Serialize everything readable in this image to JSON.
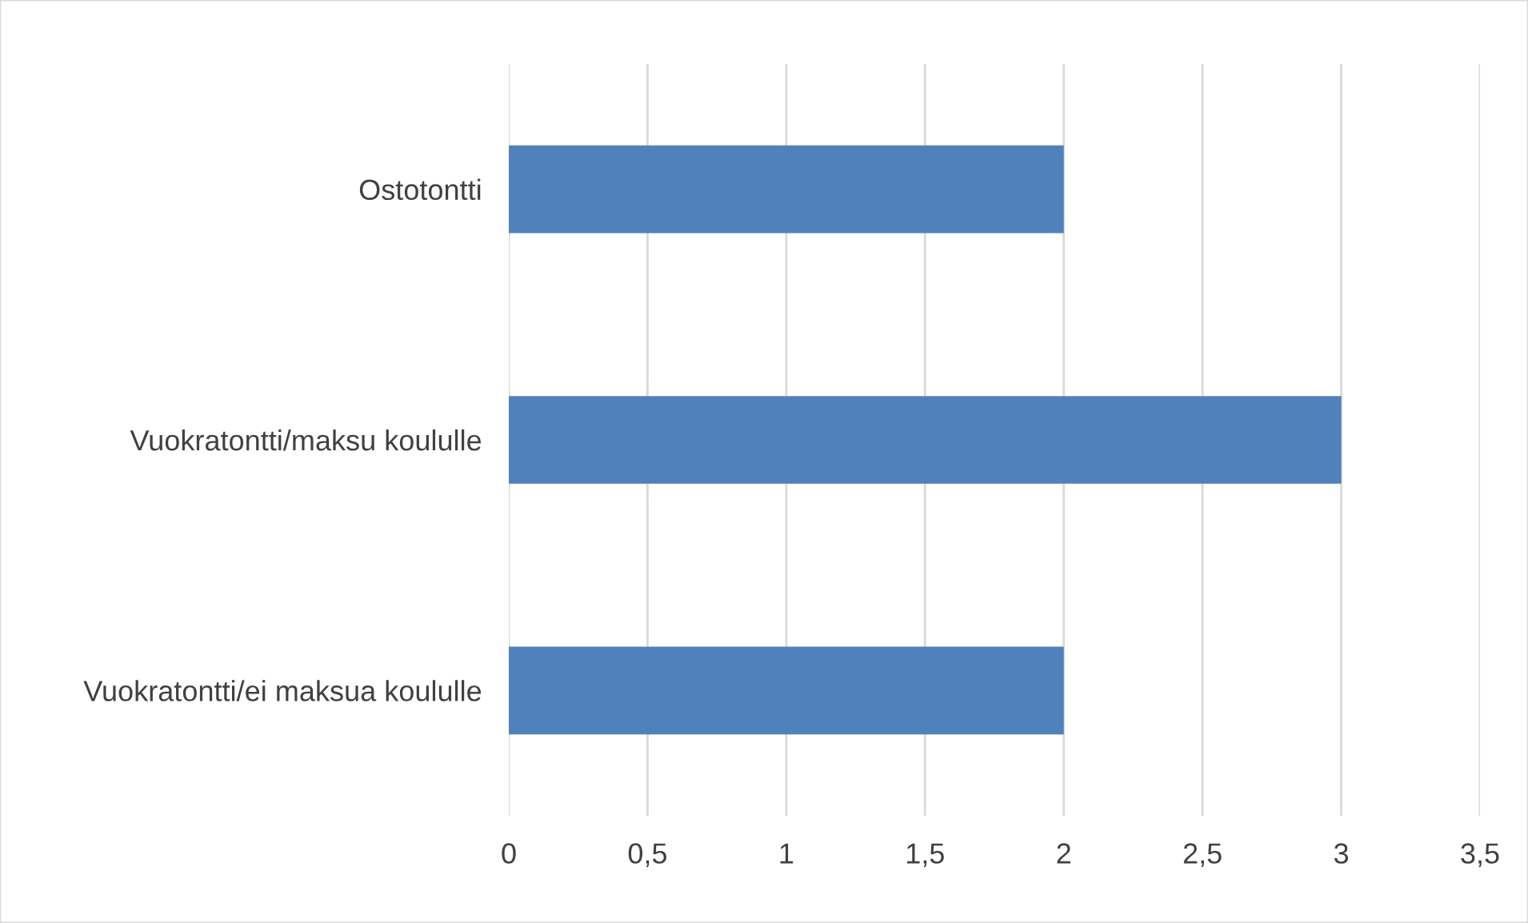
{
  "chart_data": {
    "type": "bar",
    "orientation": "horizontal",
    "categories": [
      "Ostotontti",
      "Vuokratontti/maksu koululle",
      "Vuokratontti/ei maksua koululle"
    ],
    "values": [
      2,
      3,
      2
    ],
    "color": "#4f81bd",
    "xlim": [
      0,
      3.5
    ],
    "xticks": [
      0,
      {
        "value": 0.5,
        "label": "0,5"
      },
      1,
      {
        "value": 1.5,
        "label": "1,5"
      },
      2,
      {
        "value": 2.5,
        "label": "2,5"
      },
      3,
      {
        "value": 3.5,
        "label": "3,5"
      }
    ],
    "grid": "x"
  }
}
